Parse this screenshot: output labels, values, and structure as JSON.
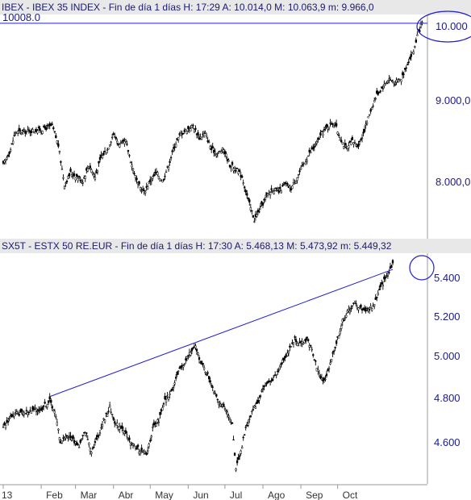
{
  "panels": {
    "top": {
      "header": "IBEX - IBEX 35 INDEX - Fin de día 1 días H: 17:29  A: 10.014,0  M: 10.063,9  m: 9.966,0",
      "ref_line_label": "10008.0",
      "y_ticks": [
        "10.000",
        "9.000,0",
        "8.000,0"
      ]
    },
    "bottom": {
      "header": "SX5T - ESTX 50 RE.EUR - Fin de día 1 días H: 17:30  A: 5.468,13  M: 5.473,92  m: 5.449,32",
      "y_ticks": [
        "5.400",
        "5.200",
        "5.000",
        "4.800",
        "4.600"
      ]
    }
  },
  "x_axis": {
    "months": [
      "13",
      "Feb",
      "Mar",
      "Abr",
      "May",
      "Jun",
      "Jul",
      "Ago",
      "Sep",
      "Oct"
    ]
  },
  "colors": {
    "candles": "#000000",
    "annotation": "#2222cc",
    "header_bg": "#e8e8e8"
  },
  "chart_data": [
    {
      "type": "line",
      "title": "IBEX - IBEX 35 INDEX",
      "xlabel": "",
      "ylabel": "",
      "ylim": [
        7300,
        10100
      ],
      "x_start_date": "2013-01-01",
      "approx_close_path": [
        [
          0,
          8200
        ],
        [
          6,
          8400
        ],
        [
          10,
          8620
        ],
        [
          20,
          8630
        ],
        [
          30,
          8650
        ],
        [
          40,
          8700
        ],
        [
          45,
          8450
        ],
        [
          50,
          7950
        ],
        [
          55,
          8100
        ],
        [
          60,
          8050
        ],
        [
          65,
          8000
        ],
        [
          70,
          8200
        ],
        [
          75,
          8050
        ],
        [
          80,
          8300
        ],
        [
          85,
          8400
        ],
        [
          90,
          8600
        ],
        [
          95,
          8450
        ],
        [
          100,
          8500
        ],
        [
          105,
          8200
        ],
        [
          110,
          7950
        ],
        [
          115,
          7850
        ],
        [
          120,
          8000
        ],
        [
          125,
          8100
        ],
        [
          130,
          8000
        ],
        [
          135,
          8200
        ],
        [
          140,
          8450
        ],
        [
          145,
          8600
        ],
        [
          150,
          8650
        ],
        [
          155,
          8700
        ],
        [
          160,
          8550
        ],
        [
          165,
          8600
        ],
        [
          170,
          8400
        ],
        [
          175,
          8350
        ],
        [
          180,
          8400
        ],
        [
          185,
          8200
        ],
        [
          190,
          8150
        ],
        [
          195,
          8050
        ],
        [
          200,
          7750
        ],
        [
          205,
          7500
        ],
        [
          210,
          7650
        ],
        [
          215,
          7800
        ],
        [
          220,
          7900
        ],
        [
          225,
          7850
        ],
        [
          230,
          7950
        ],
        [
          235,
          7900
        ],
        [
          240,
          8050
        ],
        [
          245,
          8200
        ],
        [
          250,
          8350
        ],
        [
          255,
          8450
        ],
        [
          260,
          8600
        ],
        [
          265,
          8700
        ],
        [
          270,
          8750
        ],
        [
          275,
          8550
        ],
        [
          280,
          8400
        ],
        [
          285,
          8500
        ],
        [
          290,
          8450
        ],
        [
          295,
          8650
        ],
        [
          300,
          8900
        ],
        [
          305,
          9100
        ],
        [
          310,
          9200
        ],
        [
          315,
          9300
        ],
        [
          320,
          9250
        ],
        [
          325,
          9300
        ],
        [
          330,
          9500
        ],
        [
          335,
          9650
        ],
        [
          338,
          9850
        ],
        [
          342,
          10008
        ]
      ],
      "reference_line": 10008
    },
    {
      "type": "line",
      "title": "SX5T - ESTX 50 RE.EUR",
      "xlabel": "",
      "ylabel": "",
      "ylim": [
        4460,
        5500
      ],
      "x_start_date": "2013-01-01",
      "approx_close_path": [
        [
          0,
          4700
        ],
        [
          6,
          4760
        ],
        [
          12,
          4770
        ],
        [
          20,
          4780
        ],
        [
          30,
          4790
        ],
        [
          38,
          4830
        ],
        [
          42,
          4780
        ],
        [
          47,
          4640
        ],
        [
          52,
          4670
        ],
        [
          57,
          4650
        ],
        [
          62,
          4620
        ],
        [
          67,
          4690
        ],
        [
          72,
          4600
        ],
        [
          77,
          4660
        ],
        [
          82,
          4740
        ],
        [
          87,
          4800
        ],
        [
          92,
          4720
        ],
        [
          97,
          4710
        ],
        [
          102,
          4650
        ],
        [
          107,
          4620
        ],
        [
          112,
          4600
        ],
        [
          117,
          4580
        ],
        [
          122,
          4700
        ],
        [
          127,
          4740
        ],
        [
          132,
          4830
        ],
        [
          137,
          4870
        ],
        [
          142,
          4950
        ],
        [
          147,
          5000
        ],
        [
          152,
          5050
        ],
        [
          157,
          5080
        ],
        [
          162,
          5000
        ],
        [
          167,
          4950
        ],
        [
          172,
          4880
        ],
        [
          177,
          4820
        ],
        [
          182,
          4780
        ],
        [
          187,
          4720
        ],
        [
          190,
          4520
        ],
        [
          194,
          4600
        ],
        [
          198,
          4700
        ],
        [
          203,
          4780
        ],
        [
          208,
          4830
        ],
        [
          213,
          4900
        ],
        [
          218,
          4920
        ],
        [
          223,
          4950
        ],
        [
          228,
          5020
        ],
        [
          233,
          5060
        ],
        [
          238,
          5120
        ],
        [
          243,
          5090
        ],
        [
          248,
          5120
        ],
        [
          253,
          5050
        ],
        [
          258,
          4950
        ],
        [
          262,
          4920
        ],
        [
          266,
          4980
        ],
        [
          272,
          5100
        ],
        [
          277,
          5200
        ],
        [
          282,
          5250
        ],
        [
          287,
          5280
        ],
        [
          292,
          5260
        ],
        [
          297,
          5250
        ],
        [
          302,
          5270
        ],
        [
          307,
          5340
        ],
        [
          312,
          5400
        ],
        [
          318,
          5468
        ]
      ],
      "trendline": [
        [
          38,
          4850
        ],
        [
          318,
          5440
        ]
      ]
    }
  ]
}
